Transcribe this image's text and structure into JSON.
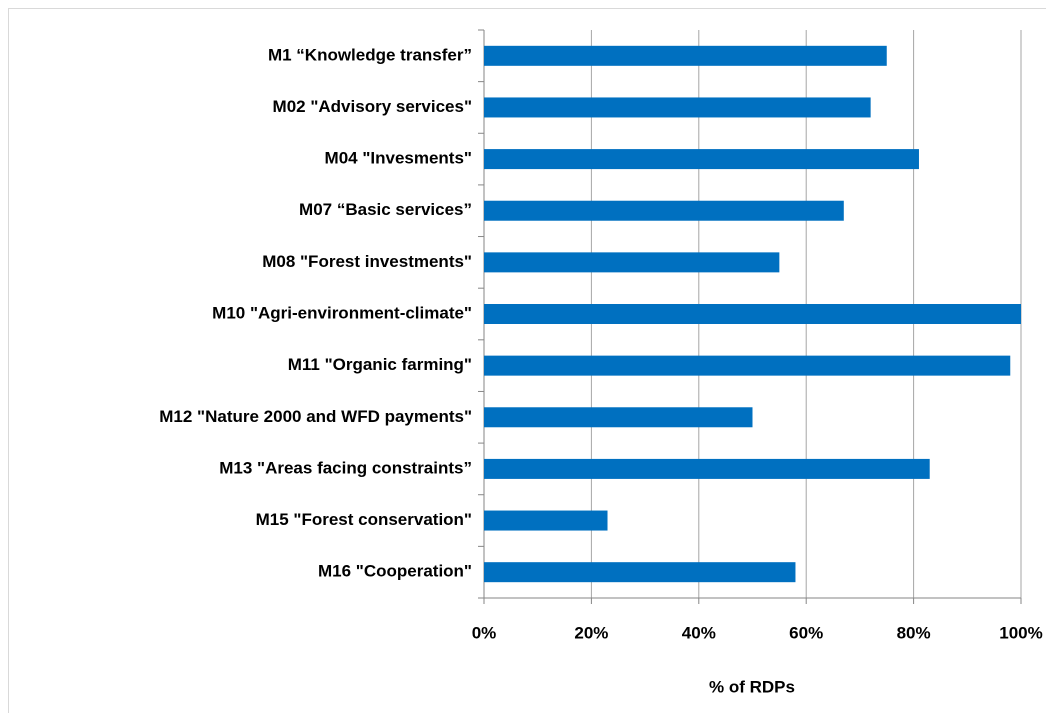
{
  "chart_data": {
    "type": "bar",
    "orientation": "horizontal",
    "categories": [
      "M1 “Knowledge transfer”",
      "M02 \"Advisory services\"",
      "M04 \"Invesments\"",
      "M07 “Basic services”",
      "M08 \"Forest investments\"",
      "M10 \"Agri-environment-climate\"",
      "M11 \"Organic farming\"",
      "M12 \"Nature 2000 and WFD payments\"",
      "M13 \"Areas facing constraints”",
      "M15 \"Forest conservation\"",
      "M16 \"Cooperation\""
    ],
    "values": [
      75,
      72,
      81,
      67,
      55,
      100,
      98,
      50,
      83,
      23,
      58
    ],
    "color": "#0070c0",
    "xlabel": "% of RDPs",
    "xlim": [
      0,
      100
    ],
    "xticks": [
      {
        "value": 0,
        "label": "0%"
      },
      {
        "value": 20,
        "label": "20%"
      },
      {
        "value": 40,
        "label": "40%"
      },
      {
        "value": 60,
        "label": "60%"
      },
      {
        "value": 80,
        "label": "80%"
      },
      {
        "value": 100,
        "label": "100%"
      }
    ],
    "grid": true
  }
}
